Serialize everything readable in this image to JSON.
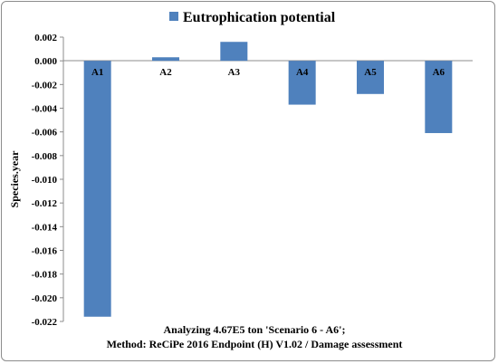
{
  "chart_data": {
    "type": "bar",
    "categories": [
      "A1",
      "A2",
      "A3",
      "A4",
      "A5",
      "A6"
    ],
    "series": [
      {
        "name": "Eutrophication potential",
        "values": [
          -0.0216,
          0.0003,
          0.0016,
          -0.0037,
          -0.0028,
          -0.0061
        ]
      }
    ],
    "ylabel": "Species.year",
    "xlabel_lines": [
      "Analyzing 4.67E5 ton 'Scenario 6 - A6';",
      "Method: ReCiPe 2016 Endpoint (H) V1.02 / Damage assessment"
    ],
    "ylim": [
      -0.022,
      0.002
    ],
    "y_ticks": [
      "0.002",
      "0.000",
      "-0.002",
      "-0.004",
      "-0.006",
      "-0.008",
      "-0.010",
      "-0.012",
      "-0.014",
      "-0.016",
      "-0.018",
      "-0.020",
      "-0.022"
    ],
    "y_tick_values": [
      0.002,
      0.0,
      -0.002,
      -0.004,
      -0.006,
      -0.008,
      -0.01,
      -0.012,
      -0.014,
      -0.016,
      -0.018,
      -0.02,
      -0.022
    ],
    "grid": false,
    "legend_position": "top",
    "bar_color": "#4f81bd"
  }
}
